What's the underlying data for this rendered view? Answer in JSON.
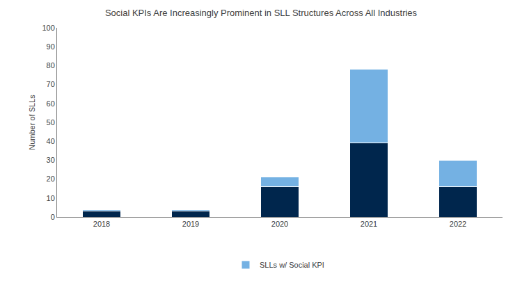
{
  "chart_data": {
    "type": "bar",
    "title": "Social KPIs Are Increasingly Prominent in SLL Structures Across All Industries",
    "y_label": "Number of SLLs",
    "categories": [
      "2018",
      "2019",
      "2020",
      "2021",
      "2022"
    ],
    "series": [
      {
        "color": "#00264d",
        "values": [
          3,
          3,
          16,
          39,
          16
        ]
      },
      {
        "name": "SLLs w/ Social KPI",
        "color": "#74b1e3",
        "values": [
          1,
          1,
          5,
          39,
          14
        ]
      }
    ],
    "stacked": true,
    "ylim": [
      0,
      100
    ],
    "yticks": [
      0,
      10,
      20,
      30,
      40,
      50,
      60,
      70,
      80,
      90,
      100
    ],
    "grid": false,
    "legend": "bottom"
  }
}
